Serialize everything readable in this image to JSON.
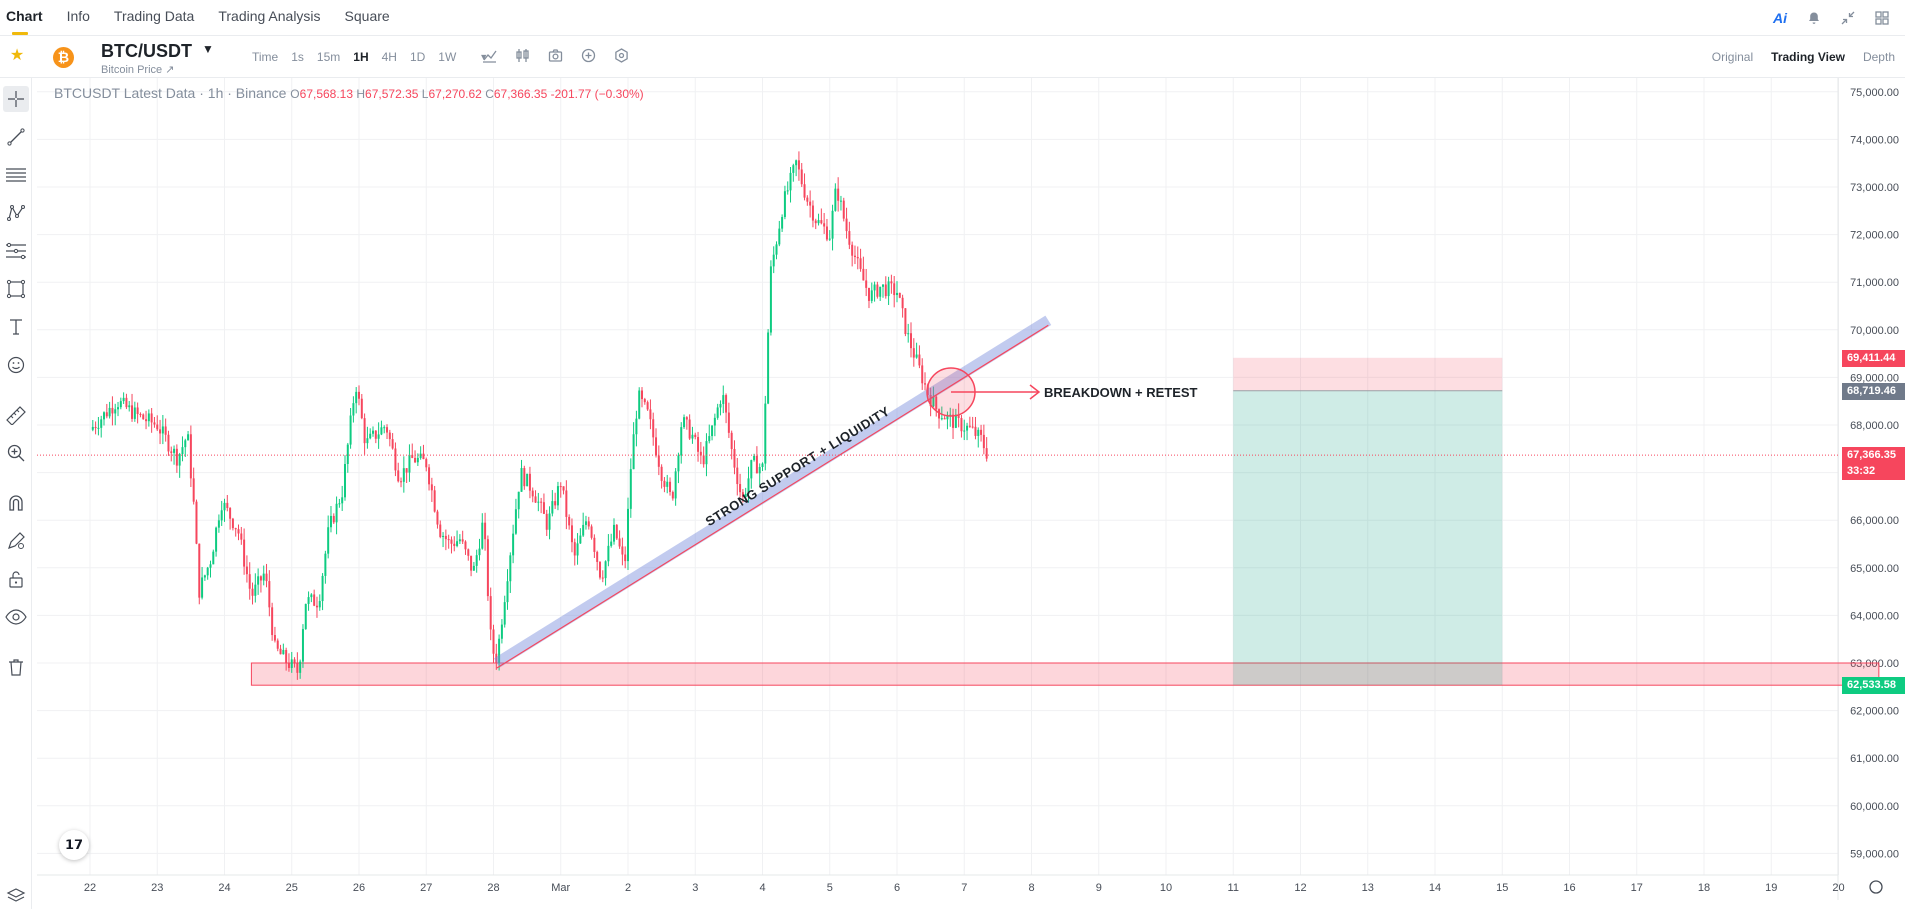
{
  "nav": {
    "tabs": [
      "Chart",
      "Info",
      "Trading Data",
      "Trading Analysis",
      "Square"
    ],
    "active": "Chart",
    "right_icons": [
      "ai-icon",
      "bell-icon",
      "collapse-icon",
      "grid-icon"
    ],
    "ai_label": "Ai"
  },
  "symbol": {
    "pair": "BTC/USDT",
    "subtitle": "Bitcoin Price ↗",
    "logo_letter": "₿"
  },
  "intervals": [
    "Time",
    "1s",
    "15m",
    "1H",
    "4H",
    "1D",
    "1W"
  ],
  "active_interval": "1H",
  "view_modes": [
    "Original",
    "Trading View",
    "Depth"
  ],
  "active_view": "Trading View",
  "legend": {
    "title": "BTCUSDT Latest Data · 1h · Binance",
    "o_label": "O",
    "o": "67,568.13",
    "h_label": "H",
    "h": "67,572.35",
    "l_label": "L",
    "l": "67,270.62",
    "c_label": "C",
    "c": "67,366.35",
    "change": "-201.77 (−0.30%)"
  },
  "price_tags": [
    {
      "text": "69,411.44",
      "color": "#f6465d",
      "price": 69411.44
    },
    {
      "text": "68,719.46",
      "color": "#707a8a",
      "price": 68719.46
    },
    {
      "text": "67,366.35",
      "color": "#f6465d",
      "price": 67366.35
    },
    {
      "text": "33:32",
      "color": "#f6465d",
      "price": 67366.35
    },
    {
      "text": "62,533.58",
      "color": "#0ecb81",
      "price": 62533.58
    }
  ],
  "annotations": {
    "breakdown": "BREAKDOWN + RETEST",
    "support": "STRONG SUPPORT + LIQUIDITY"
  },
  "chart_data": {
    "type": "candlestick",
    "title": "",
    "y_ticks": [
      75000,
      74000,
      73000,
      72000,
      71000,
      70000,
      69000,
      68000,
      67000,
      66000,
      65000,
      64000,
      63000,
      62000,
      61000,
      60000,
      59000
    ],
    "y_tick_labels": [
      "75,000.00",
      "74,000.00",
      "73,000.00",
      "72,000.00",
      "71,000.00",
      "70,000.00",
      "69,000.00",
      "68,000.00",
      "67,000.00",
      "66,000.00",
      "65,000.00",
      "64,000.00",
      "63,000.00",
      "62,000.00",
      "61,000.00",
      "60,000.00",
      "59,000.00"
    ],
    "x_ticks": [
      "22",
      "23",
      "24",
      "25",
      "26",
      "27",
      "28",
      "Mar",
      "2",
      "3",
      "4",
      "5",
      "6",
      "7",
      "8",
      "9",
      "10",
      "11",
      "12",
      "13",
      "14",
      "15",
      "16",
      "17",
      "18",
      "19",
      "20"
    ],
    "ylim": [
      58600,
      75300
    ],
    "price_path": [
      [
        0,
        67900
      ],
      [
        0.4,
        68500
      ],
      [
        0.7,
        68200
      ],
      [
        1.0,
        68000
      ],
      [
        1.3,
        67300
      ],
      [
        1.45,
        67800
      ],
      [
        1.55,
        66200
      ],
      [
        1.62,
        64500
      ],
      [
        1.8,
        65200
      ],
      [
        1.95,
        66400
      ],
      [
        2.2,
        65800
      ],
      [
        2.4,
        64400
      ],
      [
        2.6,
        64900
      ],
      [
        2.75,
        63300
      ],
      [
        2.95,
        63000
      ],
      [
        3.1,
        62800
      ],
      [
        3.2,
        64300
      ],
      [
        3.4,
        64300
      ],
      [
        3.55,
        65800
      ],
      [
        3.75,
        66600
      ],
      [
        3.95,
        68900
      ],
      [
        4.1,
        67600
      ],
      [
        4.4,
        68000
      ],
      [
        4.6,
        66900
      ],
      [
        4.8,
        67300
      ],
      [
        5.0,
        67200
      ],
      [
        5.2,
        65800
      ],
      [
        5.35,
        65500
      ],
      [
        5.5,
        65600
      ],
      [
        5.7,
        64900
      ],
      [
        5.85,
        66000
      ],
      [
        5.97,
        63300
      ],
      [
        6.05,
        63100
      ],
      [
        6.2,
        64800
      ],
      [
        6.4,
        67000
      ],
      [
        6.6,
        66600
      ],
      [
        6.8,
        65900
      ],
      [
        7.0,
        66800
      ],
      [
        7.2,
        65200
      ],
      [
        7.4,
        66100
      ],
      [
        7.6,
        64800
      ],
      [
        7.8,
        65800
      ],
      [
        7.95,
        65000
      ],
      [
        8.05,
        67300
      ],
      [
        8.15,
        68600
      ],
      [
        8.3,
        68200
      ],
      [
        8.5,
        67000
      ],
      [
        8.65,
        66400
      ],
      [
        8.8,
        68100
      ],
      [
        8.95,
        67800
      ],
      [
        9.1,
        67200
      ],
      [
        9.25,
        67900
      ],
      [
        9.4,
        68700
      ],
      [
        9.55,
        67400
      ],
      [
        9.7,
        66400
      ],
      [
        9.85,
        67200
      ],
      [
        10.0,
        67100
      ],
      [
        10.12,
        71200
      ],
      [
        10.3,
        72600
      ],
      [
        10.5,
        73500
      ],
      [
        10.65,
        72800
      ],
      [
        10.8,
        72300
      ],
      [
        11.0,
        72000
      ],
      [
        11.1,
        73000
      ],
      [
        11.25,
        72100
      ],
      [
        11.45,
        71200
      ],
      [
        11.6,
        70700
      ],
      [
        11.75,
        70900
      ],
      [
        12.0,
        70800
      ],
      [
        12.15,
        69900
      ],
      [
        12.3,
        69300
      ],
      [
        12.45,
        68700
      ],
      [
        12.6,
        68300
      ],
      [
        12.8,
        68100
      ],
      [
        12.95,
        68000
      ],
      [
        13.1,
        67900
      ],
      [
        13.25,
        67700
      ],
      [
        13.35,
        67366
      ]
    ],
    "zones": [
      {
        "name": "support-zone",
        "from_day": 2.4,
        "to_day": 26.6,
        "low": 62533.58,
        "high": 63000
      },
      {
        "name": "short-stop-zone",
        "from_day": 17.0,
        "to_day": 21.0,
        "low": 68719.46,
        "high": 69411.44
      },
      {
        "name": "short-profit-zone",
        "from_day": 17.0,
        "to_day": 21.0,
        "low": 62533.58,
        "high": 68719.46
      }
    ],
    "trendline": {
      "from": [
        6.05,
        63000
      ],
      "to": [
        14.25,
        70200
      ]
    },
    "current_price": 67366.35
  }
}
